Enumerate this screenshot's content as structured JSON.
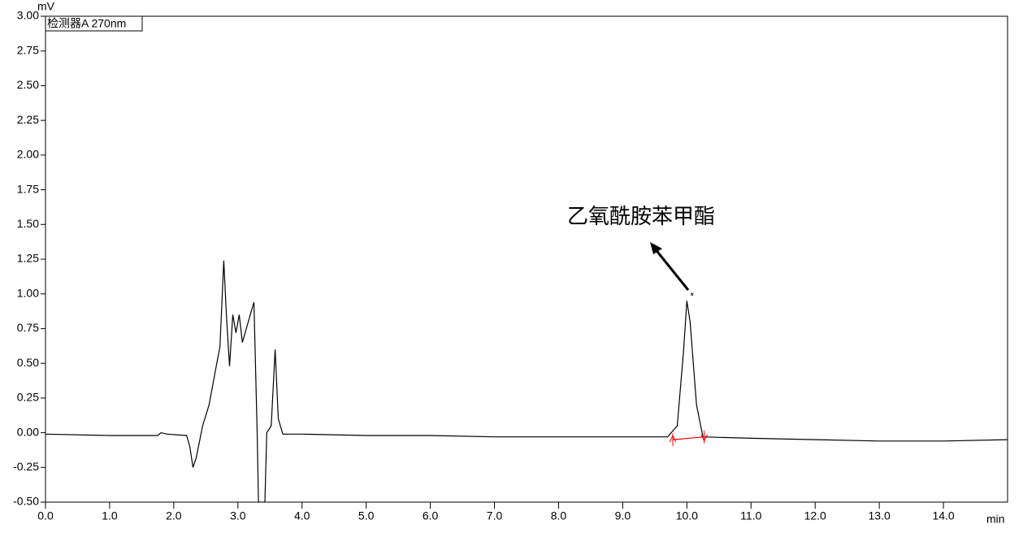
{
  "chart_data": {
    "type": "line",
    "y_unit": "mV",
    "x_unit": "min",
    "legend_label": "检测器A 270nm",
    "annotation": "乙氧酰胺苯甲酯",
    "peak_label": "*",
    "xlim": [
      0,
      15
    ],
    "ylim": [
      -0.5,
      3.0
    ],
    "xticks": [
      {
        "value": 0,
        "label": "0.0"
      },
      {
        "value": 1,
        "label": "1.0"
      },
      {
        "value": 2,
        "label": "2.0"
      },
      {
        "value": 3,
        "label": "3.0"
      },
      {
        "value": 4,
        "label": "4.0"
      },
      {
        "value": 5,
        "label": "5.0"
      },
      {
        "value": 6,
        "label": "6.0"
      },
      {
        "value": 7,
        "label": "7.0"
      },
      {
        "value": 8,
        "label": "8.0"
      },
      {
        "value": 9,
        "label": "9.0"
      },
      {
        "value": 10,
        "label": "10.0"
      },
      {
        "value": 11,
        "label": "11.0"
      },
      {
        "value": 12,
        "label": "12.0"
      },
      {
        "value": 13,
        "label": "13.0"
      },
      {
        "value": 14,
        "label": "14.0"
      }
    ],
    "yticks": [
      {
        "value": -0.5,
        "label": "-0.50"
      },
      {
        "value": -0.25,
        "label": "-0.25"
      },
      {
        "value": 0,
        "label": "0.00"
      },
      {
        "value": 0.25,
        "label": "0.25"
      },
      {
        "value": 0.5,
        "label": "0.50"
      },
      {
        "value": 0.75,
        "label": "0.75"
      },
      {
        "value": 1,
        "label": "1.00"
      },
      {
        "value": 1.25,
        "label": "1.25"
      },
      {
        "value": 1.5,
        "label": "1.50"
      },
      {
        "value": 1.75,
        "label": "1.75"
      },
      {
        "value": 2,
        "label": "2.00"
      },
      {
        "value": 2.25,
        "label": "2.25"
      },
      {
        "value": 2.5,
        "label": "2.50"
      },
      {
        "value": 2.75,
        "label": "2.75"
      },
      {
        "value": 3,
        "label": "3.00"
      }
    ],
    "color": "#000000",
    "x": [
      0,
      1.0,
      1.75,
      1.8,
      1.9,
      2.2,
      2.25,
      2.3,
      2.35,
      2.45,
      2.55,
      2.65,
      2.72,
      2.78,
      2.82,
      2.87,
      2.92,
      2.97,
      3.02,
      3.07,
      3.15,
      3.25,
      3.3,
      3.32,
      3.42,
      3.45,
      3.52,
      3.58,
      3.63,
      3.7,
      4.0,
      5.0,
      6.0,
      7.0,
      8.0,
      9.0,
      9.7,
      9.85,
      9.95,
      10.0,
      10.05,
      10.15,
      10.25,
      11.0,
      12.0,
      13.0,
      14.0,
      15.0
    ],
    "values": [
      -0.01,
      -0.02,
      -0.02,
      0.0,
      -0.01,
      -0.02,
      -0.1,
      -0.25,
      -0.18,
      0.05,
      0.2,
      0.45,
      0.62,
      1.24,
      0.85,
      0.48,
      0.85,
      0.72,
      0.85,
      0.65,
      0.78,
      0.94,
      0.0,
      -0.5,
      -0.5,
      0.0,
      0.05,
      0.6,
      0.1,
      -0.01,
      -0.01,
      -0.02,
      -0.02,
      -0.03,
      -0.03,
      -0.03,
      -0.03,
      0.05,
      0.6,
      0.95,
      0.8,
      0.2,
      -0.03,
      -0.04,
      -0.05,
      -0.06,
      -0.06,
      -0.05
    ],
    "integration_baseline": {
      "color": "#ff0000",
      "x": [
        9.78,
        10.27
      ],
      "values": [
        -0.05,
        -0.03
      ]
    }
  }
}
